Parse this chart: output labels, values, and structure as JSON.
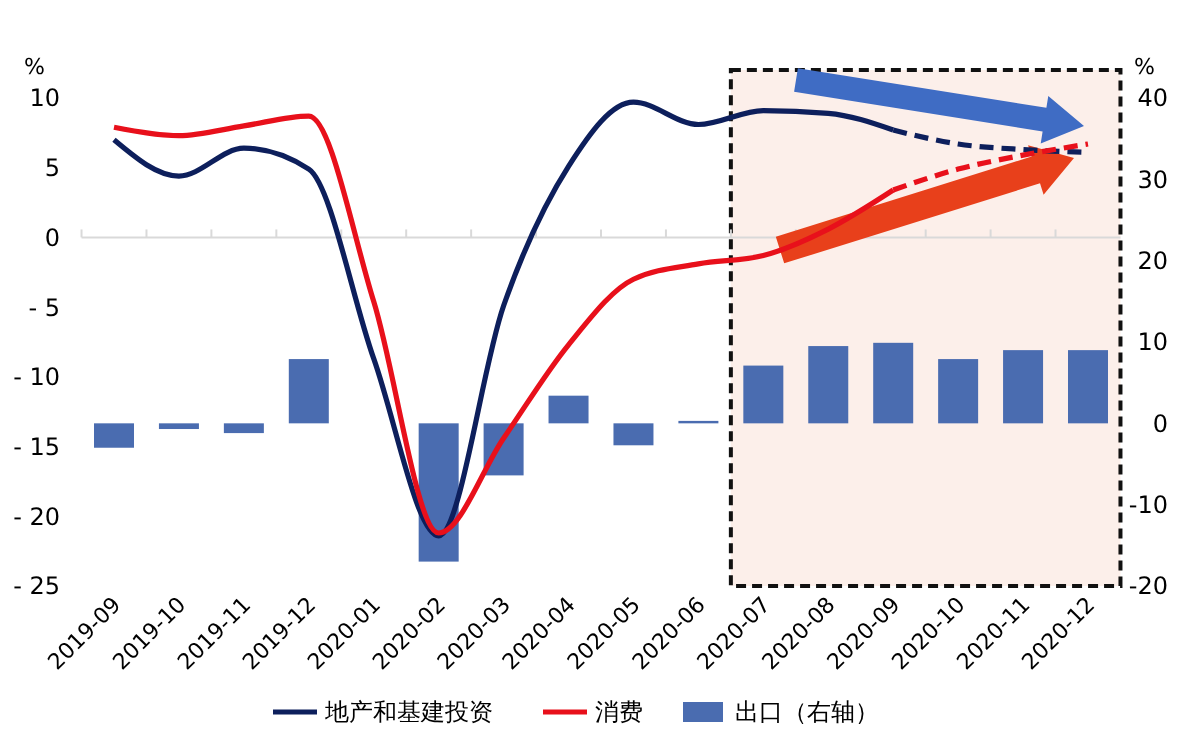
{
  "chart_data": {
    "type": "line",
    "categories": [
      "2019-09",
      "2019-10",
      "2019-11",
      "2019-12",
      "2020-01",
      "2020-02",
      "2020-03",
      "2020-04",
      "2020-05",
      "2020-06",
      "2020-07",
      "2020-08",
      "2020-09",
      "2020-10",
      "2020-11",
      "2020-12"
    ],
    "series": [
      {
        "name": "地产和基建投资",
        "color": "#0d1f5c",
        "line_style": "solid",
        "values": [
          7.0,
          4.4,
          6.4,
          4.9,
          -8.7,
          -21.4,
          -4.9,
          5.1,
          9.7,
          8.1,
          9.1,
          8.9,
          7.7,
          null,
          null,
          null
        ]
      },
      {
        "color": "#0d1f5c",
        "line_style": "dashed",
        "values": [
          null,
          null,
          null,
          null,
          null,
          null,
          null,
          null,
          null,
          null,
          null,
          null,
          7.7,
          6.7,
          6.3,
          6.1
        ]
      },
      {
        "name": "消费",
        "color": "#e8101b",
        "line_style": "solid",
        "values": [
          7.9,
          7.3,
          8.0,
          8.7,
          -4.6,
          -21.2,
          -14.4,
          -7.7,
          -3.0,
          -1.9,
          -1.3,
          0.6,
          3.4,
          null,
          null,
          null
        ]
      },
      {
        "color": "#e8101b",
        "line_style": "dashed",
        "values": [
          null,
          null,
          null,
          null,
          null,
          null,
          null,
          null,
          null,
          null,
          null,
          null,
          3.4,
          4.9,
          5.9,
          6.7
        ]
      },
      {
        "name": "出口（右轴）",
        "type": "bar",
        "axis": "y2",
        "color": "#4a6cb0",
        "values": [
          -3.0,
          -0.7,
          -1.2,
          7.9,
          null,
          -17.0,
          -6.4,
          3.4,
          -2.7,
          0.3,
          7.1,
          9.5,
          9.9,
          7.9,
          9.0,
          9.0
        ]
      }
    ],
    "ylabel": "%",
    "y2label": "%",
    "ylim": [
      -25,
      10
    ],
    "yticks": [
      {
        "value": -25,
        "label": "- 25"
      },
      {
        "value": -20,
        "label": "- 20"
      },
      {
        "value": -15,
        "label": "- 15"
      },
      {
        "value": -10,
        "label": "- 10"
      },
      {
        "value": -5,
        "label": "- 5"
      },
      0,
      5,
      10
    ],
    "y2lim": [
      -20,
      40
    ],
    "y2ticks": [
      -20,
      -10,
      0,
      10,
      20,
      30,
      40
    ],
    "bands": [
      {
        "axis": "x",
        "from": "2020-07",
        "to": "2020-12",
        "color": "#fcefea"
      }
    ],
    "ref_lines": [
      {
        "axis": "y",
        "value": 0,
        "color": "#d9d9d9"
      }
    ],
    "legend": "bottom"
  }
}
